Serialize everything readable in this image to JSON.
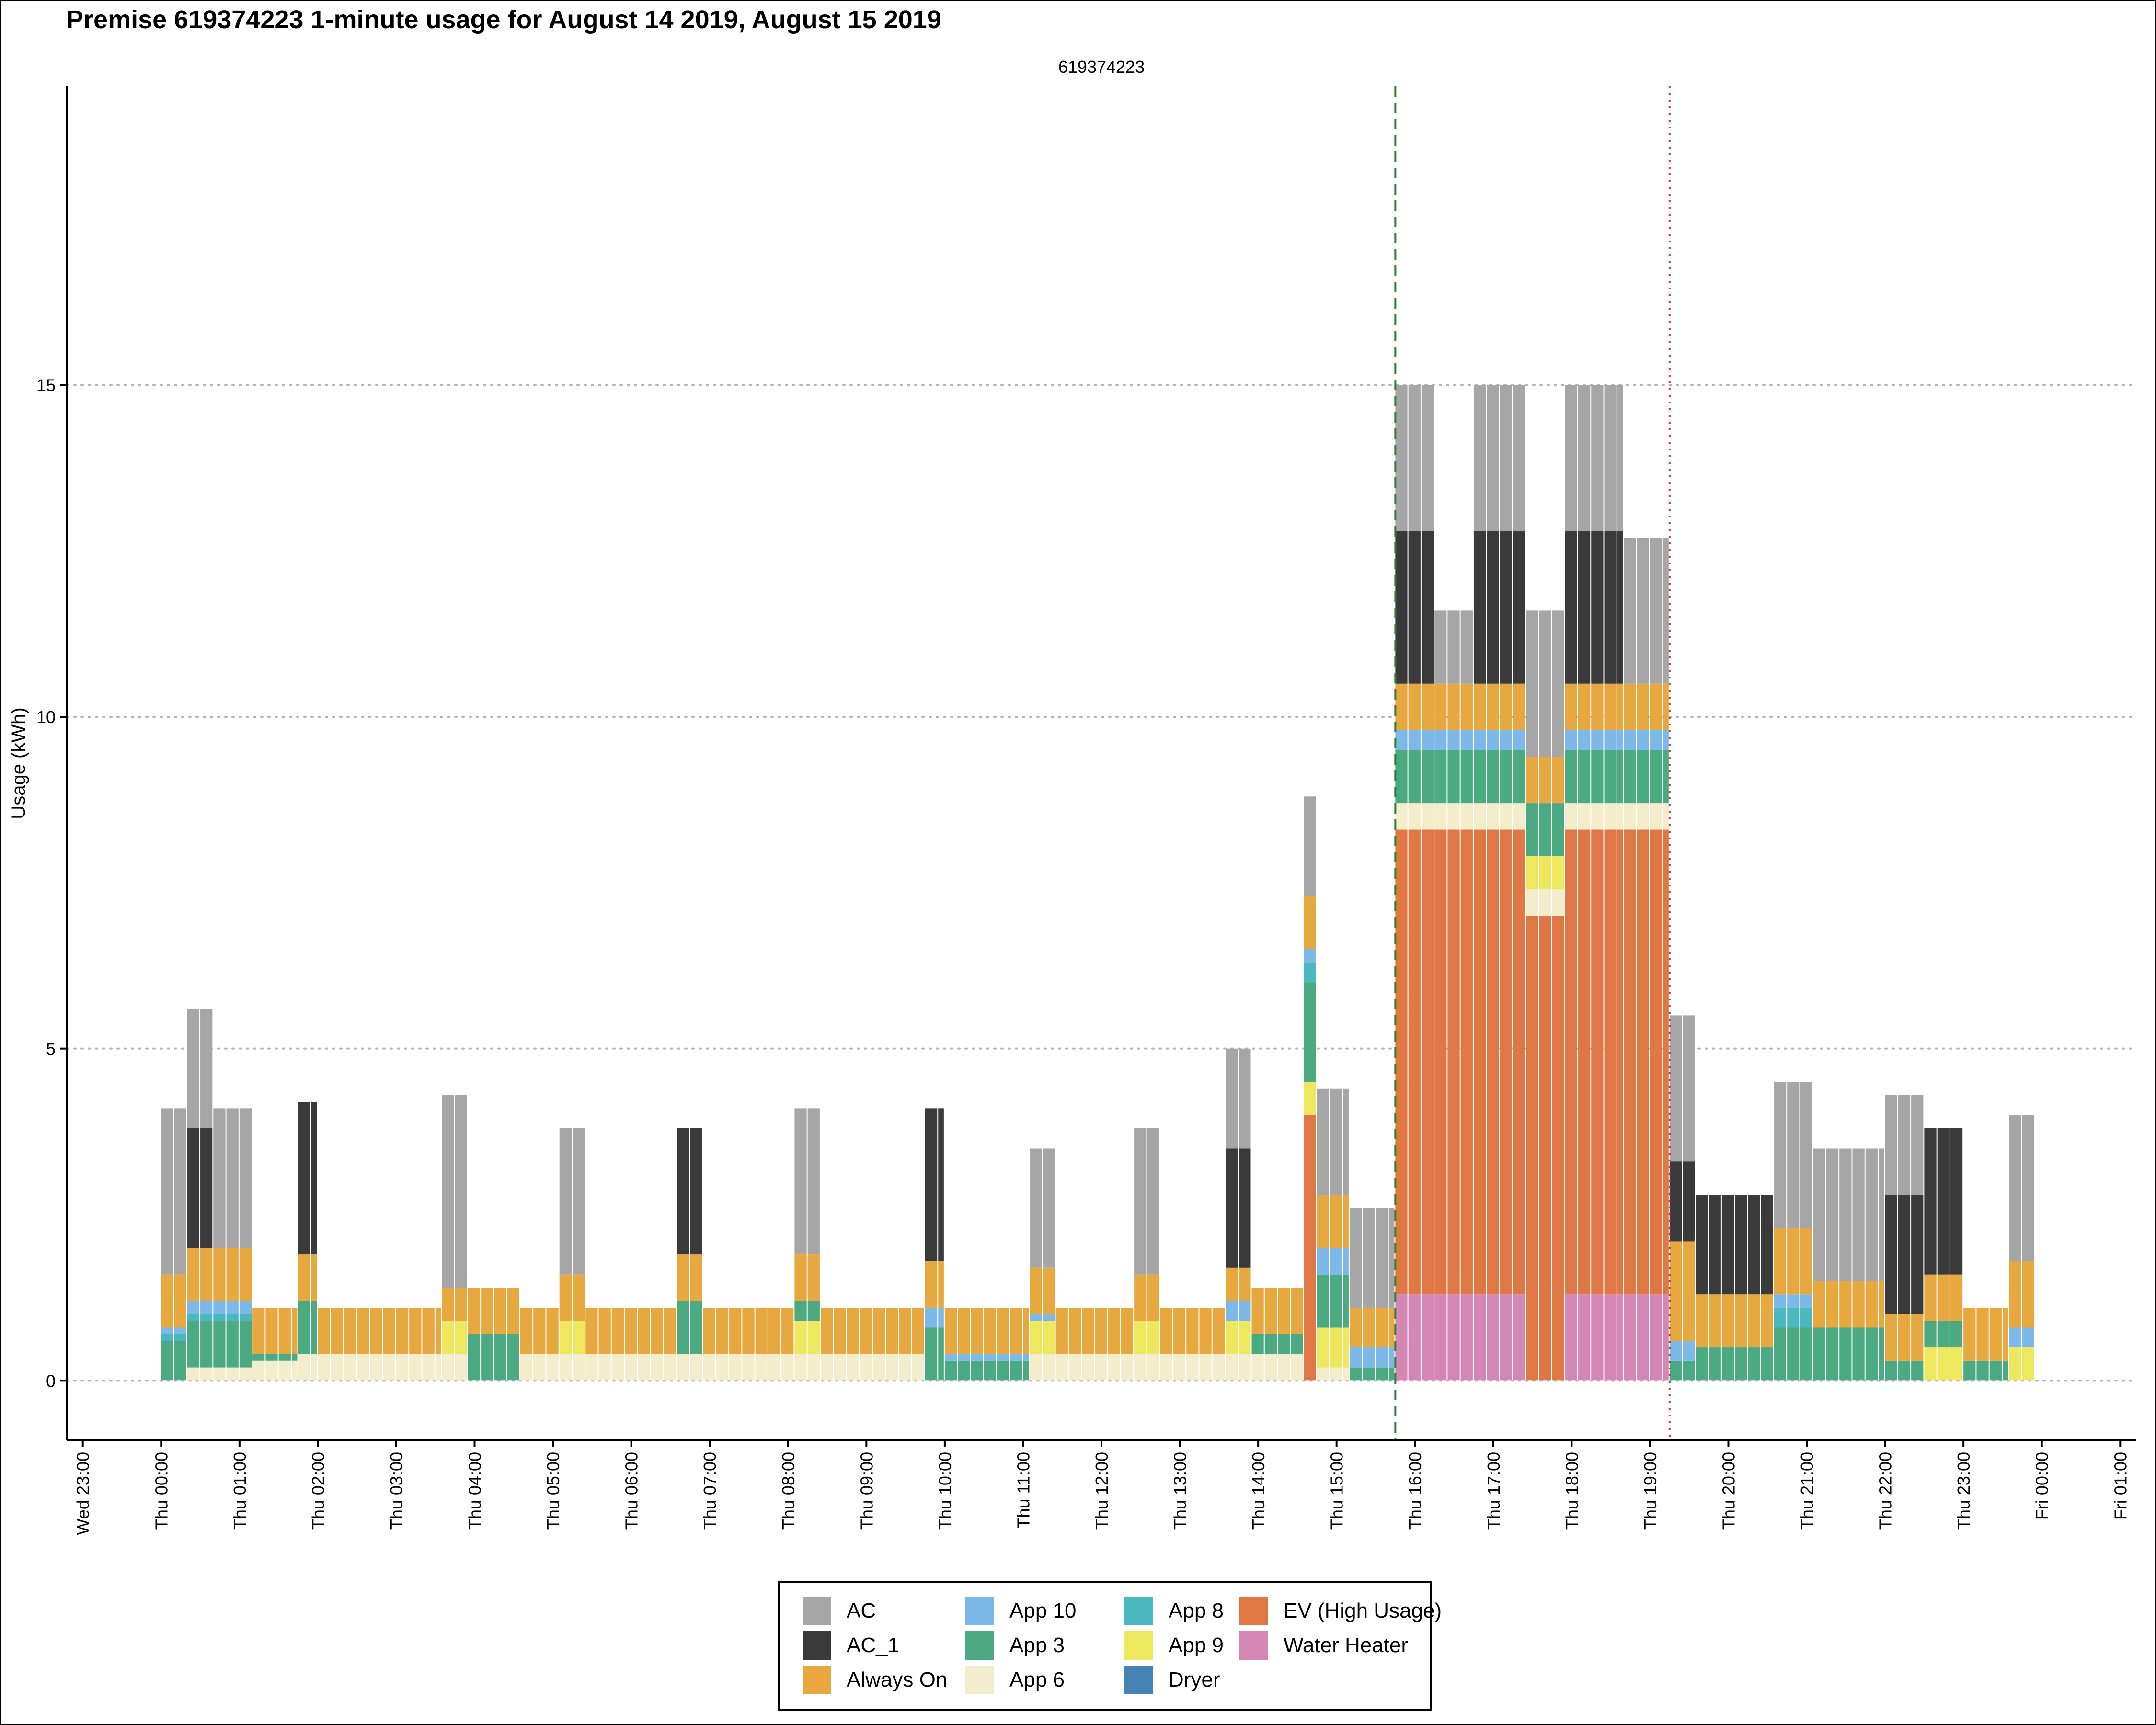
{
  "title": "Premise 619374223 1-minute usage for August 14 2019, August 15 2019",
  "chart_data": {
    "type": "bar",
    "stacked": true,
    "title": "Premise 619374223 1-minute usage for August 14 2019, August 15 2019",
    "subtitle": "619374223",
    "ylabel": "Usage (kWh)",
    "xlabel": "",
    "ylim": [
      -0.9,
      19.5
    ],
    "xlim_hours": [
      -1.2,
      25.2
    ],
    "yticks": [
      0,
      5,
      10,
      15
    ],
    "xticks": [
      "Wed 23:00",
      "Thu 00:00",
      "Thu 01:00",
      "Thu 02:00",
      "Thu 03:00",
      "Thu 04:00",
      "Thu 05:00",
      "Thu 06:00",
      "Thu 07:00",
      "Thu 08:00",
      "Thu 09:00",
      "Thu 10:00",
      "Thu 11:00",
      "Thu 12:00",
      "Thu 13:00",
      "Thu 14:00",
      "Thu 15:00",
      "Thu 16:00",
      "Thu 17:00",
      "Thu 18:00",
      "Thu 19:00",
      "Thu 20:00",
      "Thu 21:00",
      "Thu 22:00",
      "Thu 23:00",
      "Fri 00:00",
      "Fri 01:00"
    ],
    "grid": "horizontal dotted at y ticks",
    "legend_position": "bottom",
    "vlines": [
      {
        "time": "Thu 15:45",
        "style": "dashed",
        "color": "#2e7d32"
      },
      {
        "time": "Thu 19:15",
        "style": "dotted",
        "color": "#c0392b"
      }
    ],
    "series": [
      {
        "name": "AC",
        "color": "#a6a6a6"
      },
      {
        "name": "AC_1",
        "color": "#3a3a3a"
      },
      {
        "name": "Always On",
        "color": "#e8a840"
      },
      {
        "name": "App 10",
        "color": "#7cb9e8"
      },
      {
        "name": "App 3",
        "color": "#4caa82"
      },
      {
        "name": "App 6",
        "color": "#f3edcb"
      },
      {
        "name": "App 8",
        "color": "#4bb8c0"
      },
      {
        "name": "App 9",
        "color": "#eee85e"
      },
      {
        "name": "Dryer",
        "color": "#4682b4"
      },
      {
        "name": "EV (High Usage)",
        "color": "#df7845"
      },
      {
        "name": "Water Heater",
        "color": "#d487b5"
      }
    ],
    "segments": [
      {
        "start": "Thu 00:00",
        "end": "Thu 00:20",
        "AC": 2.5,
        "AC_1": 0.0,
        "Always On": 0.8,
        "App 10": 0.1,
        "App 3": 0.6,
        "App 6": 0.0,
        "App 8": 0.1,
        "App 9": 0.0,
        "Dryer": 0.0,
        "EV (High Usage)": 0.0,
        "Water Heater": 0.0
      },
      {
        "start": "Thu 00:20",
        "end": "Thu 00:40",
        "AC": 1.8,
        "AC_1": 1.8,
        "Always On": 0.8,
        "App 10": 0.2,
        "App 3": 0.7,
        "App 6": 0.2,
        "App 8": 0.1,
        "App 9": 0.0,
        "Dryer": 0.0,
        "EV (High Usage)": 0.0,
        "Water Heater": 0.0
      },
      {
        "start": "Thu 00:40",
        "end": "Thu 01:10",
        "AC": 2.1,
        "AC_1": 0.0,
        "Always On": 0.8,
        "App 10": 0.2,
        "App 3": 0.7,
        "App 6": 0.2,
        "App 8": 0.1,
        "App 9": 0.0,
        "Dryer": 0.0,
        "EV (High Usage)": 0.0,
        "Water Heater": 0.0
      },
      {
        "start": "Thu 01:10",
        "end": "Thu 01:45",
        "AC": 0.0,
        "AC_1": 0.0,
        "Always On": 0.7,
        "App 10": 0.0,
        "App 3": 0.1,
        "App 6": 0.3,
        "App 8": 0.0,
        "App 9": 0.0,
        "Dryer": 0.0,
        "EV (High Usage)": 0.0,
        "Water Heater": 0.0
      },
      {
        "start": "Thu 01:45",
        "end": "Thu 02:00",
        "AC": 0.0,
        "AC_1": 2.3,
        "Always On": 0.7,
        "App 10": 0.0,
        "App 3": 0.8,
        "App 6": 0.4,
        "App 8": 0.0,
        "App 9": 0.0,
        "Dryer": 0.0,
        "EV (High Usage)": 0.0,
        "Water Heater": 0.0
      },
      {
        "start": "Thu 02:00",
        "end": "Thu 03:35",
        "AC": 0.0,
        "AC_1": 0.0,
        "Always On": 0.7,
        "App 10": 0.0,
        "App 3": 0.0,
        "App 6": 0.4,
        "App 8": 0.0,
        "App 9": 0.0,
        "Dryer": 0.0,
        "EV (High Usage)": 0.0,
        "Water Heater": 0.0
      },
      {
        "start": "Thu 03:35",
        "end": "Thu 03:55",
        "AC": 2.9,
        "AC_1": 0.0,
        "Always On": 0.5,
        "App 10": 0.0,
        "App 3": 0.0,
        "App 6": 0.4,
        "App 8": 0.0,
        "App 9": 0.5,
        "Dryer": 0.0,
        "EV (High Usage)": 0.0,
        "Water Heater": 0.0
      },
      {
        "start": "Thu 03:55",
        "end": "Thu 04:35",
        "AC": 0.0,
        "AC_1": 0.0,
        "Always On": 0.7,
        "App 10": 0.0,
        "App 3": 0.7,
        "App 6": 0.0,
        "App 8": 0.0,
        "App 9": 0.0,
        "Dryer": 0.0,
        "EV (High Usage)": 0.0,
        "Water Heater": 0.0
      },
      {
        "start": "Thu 04:35",
        "end": "Thu 05:05",
        "AC": 0.0,
        "AC_1": 0.0,
        "Always On": 0.7,
        "App 10": 0.0,
        "App 3": 0.0,
        "App 6": 0.4,
        "App 8": 0.0,
        "App 9": 0.0,
        "Dryer": 0.0,
        "EV (High Usage)": 0.0,
        "Water Heater": 0.0
      },
      {
        "start": "Thu 05:05",
        "end": "Thu 05:25",
        "AC": 2.2,
        "AC_1": 0.0,
        "Always On": 0.7,
        "App 10": 0.0,
        "App 3": 0.0,
        "App 6": 0.4,
        "App 8": 0.0,
        "App 9": 0.5,
        "Dryer": 0.0,
        "EV (High Usage)": 0.0,
        "Water Heater": 0.0
      },
      {
        "start": "Thu 05:25",
        "end": "Thu 06:35",
        "AC": 0.0,
        "AC_1": 0.0,
        "Always On": 0.7,
        "App 10": 0.0,
        "App 3": 0.0,
        "App 6": 0.4,
        "App 8": 0.0,
        "App 9": 0.0,
        "Dryer": 0.0,
        "EV (High Usage)": 0.0,
        "Water Heater": 0.0
      },
      {
        "start": "Thu 06:35",
        "end": "Thu 06:55",
        "AC": 0.0,
        "AC_1": 1.9,
        "Always On": 0.7,
        "App 10": 0.0,
        "App 3": 0.8,
        "App 6": 0.4,
        "App 8": 0.0,
        "App 9": 0.0,
        "Dryer": 0.0,
        "EV (High Usage)": 0.0,
        "Water Heater": 0.0
      },
      {
        "start": "Thu 06:55",
        "end": "Thu 08:05",
        "AC": 0.0,
        "AC_1": 0.0,
        "Always On": 0.7,
        "App 10": 0.0,
        "App 3": 0.0,
        "App 6": 0.4,
        "App 8": 0.0,
        "App 9": 0.0,
        "Dryer": 0.0,
        "EV (High Usage)": 0.0,
        "Water Heater": 0.0
      },
      {
        "start": "Thu 08:05",
        "end": "Thu 08:25",
        "AC": 2.2,
        "AC_1": 0.0,
        "Always On": 0.7,
        "App 10": 0.0,
        "App 3": 0.3,
        "App 6": 0.4,
        "App 8": 0.0,
        "App 9": 0.5,
        "Dryer": 0.0,
        "EV (High Usage)": 0.0,
        "Water Heater": 0.0
      },
      {
        "start": "Thu 08:25",
        "end": "Thu 09:45",
        "AC": 0.0,
        "AC_1": 0.0,
        "Always On": 0.7,
        "App 10": 0.0,
        "App 3": 0.0,
        "App 6": 0.4,
        "App 8": 0.0,
        "App 9": 0.0,
        "Dryer": 0.0,
        "EV (High Usage)": 0.0,
        "Water Heater": 0.0
      },
      {
        "start": "Thu 09:45",
        "end": "Thu 10:00",
        "AC": 0.0,
        "AC_1": 2.3,
        "Always On": 0.7,
        "App 10": 0.3,
        "App 3": 0.8,
        "App 6": 0.0,
        "App 8": 0.0,
        "App 9": 0.0,
        "Dryer": 0.0,
        "EV (High Usage)": 0.0,
        "Water Heater": 0.0
      },
      {
        "start": "Thu 10:00",
        "end": "Thu 11:05",
        "AC": 0.0,
        "AC_1": 0.0,
        "Always On": 0.7,
        "App 10": 0.1,
        "App 3": 0.3,
        "App 6": 0.0,
        "App 8": 0.0,
        "App 9": 0.0,
        "Dryer": 0.0,
        "EV (High Usage)": 0.0,
        "Water Heater": 0.0
      },
      {
        "start": "Thu 11:05",
        "end": "Thu 11:25",
        "AC": 1.8,
        "AC_1": 0.0,
        "Always On": 0.7,
        "App 10": 0.1,
        "App 3": 0.0,
        "App 6": 0.4,
        "App 8": 0.0,
        "App 9": 0.5,
        "Dryer": 0.0,
        "EV (High Usage)": 0.0,
        "Water Heater": 0.0
      },
      {
        "start": "Thu 11:25",
        "end": "Thu 12:25",
        "AC": 0.0,
        "AC_1": 0.0,
        "Always On": 0.7,
        "App 10": 0.0,
        "App 3": 0.0,
        "App 6": 0.4,
        "App 8": 0.0,
        "App 9": 0.0,
        "Dryer": 0.0,
        "EV (High Usage)": 0.0,
        "Water Heater": 0.0
      },
      {
        "start": "Thu 12:25",
        "end": "Thu 12:45",
        "AC": 2.2,
        "AC_1": 0.0,
        "Always On": 0.7,
        "App 10": 0.0,
        "App 3": 0.0,
        "App 6": 0.4,
        "App 8": 0.0,
        "App 9": 0.5,
        "Dryer": 0.0,
        "EV (High Usage)": 0.0,
        "Water Heater": 0.0
      },
      {
        "start": "Thu 12:45",
        "end": "Thu 13:35",
        "AC": 0.0,
        "AC_1": 0.0,
        "Always On": 0.7,
        "App 10": 0.0,
        "App 3": 0.0,
        "App 6": 0.4,
        "App 8": 0.0,
        "App 9": 0.0,
        "Dryer": 0.0,
        "EV (High Usage)": 0.0,
        "Water Heater": 0.0
      },
      {
        "start": "Thu 13:35",
        "end": "Thu 13:55",
        "AC": 1.5,
        "AC_1": 1.8,
        "Always On": 0.5,
        "App 10": 0.3,
        "App 3": 0.0,
        "App 6": 0.4,
        "App 8": 0.0,
        "App 9": 0.5,
        "Dryer": 0.0,
        "EV (High Usage)": 0.0,
        "Water Heater": 0.0
      },
      {
        "start": "Thu 13:55",
        "end": "Thu 14:35",
        "AC": 0.0,
        "AC_1": 0.0,
        "Always On": 0.7,
        "App 10": 0.0,
        "App 3": 0.3,
        "App 6": 0.4,
        "App 8": 0.0,
        "App 9": 0.0,
        "Dryer": 0.0,
        "EV (High Usage)": 0.0,
        "Water Heater": 0.0
      },
      {
        "start": "Thu 14:35",
        "end": "Thu 14:45",
        "AC": 1.5,
        "AC_1": 0.0,
        "Always On": 0.8,
        "App 10": 0.2,
        "App 3": 1.5,
        "App 6": 0.0,
        "App 8": 0.3,
        "App 9": 0.5,
        "Dryer": 0.0,
        "EV (High Usage)": 4.0,
        "Water Heater": 0.0
      },
      {
        "start": "Thu 14:45",
        "end": "Thu 15:10",
        "AC": 1.6,
        "AC_1": 0.0,
        "Always On": 0.8,
        "App 10": 0.4,
        "App 3": 0.8,
        "App 6": 0.2,
        "App 8": 0.0,
        "App 9": 0.6,
        "Dryer": 0.0,
        "EV (High Usage)": 0.0,
        "Water Heater": 0.0
      },
      {
        "start": "Thu 15:10",
        "end": "Thu 15:45",
        "AC": 1.5,
        "AC_1": 0.0,
        "Always On": 0.6,
        "App 10": 0.3,
        "App 3": 0.2,
        "App 6": 0.0,
        "App 8": 0.0,
        "App 9": 0.0,
        "Dryer": 0.0,
        "EV (High Usage)": 0.0,
        "Water Heater": 0.0
      },
      {
        "start": "Thu 15:45",
        "end": "Thu 16:15",
        "AC": 2.2,
        "AC_1": 2.3,
        "Always On": 0.7,
        "App 10": 0.3,
        "App 3": 0.8,
        "App 6": 0.4,
        "App 8": 0.0,
        "App 9": 0.0,
        "Dryer": 0.0,
        "EV (High Usage)": 7.0,
        "Water Heater": 1.3
      },
      {
        "start": "Thu 16:15",
        "end": "Thu 16:45",
        "AC": 1.1,
        "AC_1": 0.0,
        "Always On": 0.7,
        "App 10": 0.3,
        "App 3": 0.8,
        "App 6": 0.4,
        "App 8": 0.0,
        "App 9": 0.0,
        "Dryer": 0.0,
        "EV (High Usage)": 7.0,
        "Water Heater": 1.3
      },
      {
        "start": "Thu 16:45",
        "end": "Thu 17:25",
        "AC": 2.2,
        "AC_1": 2.3,
        "Always On": 0.7,
        "App 10": 0.3,
        "App 3": 0.8,
        "App 6": 0.4,
        "App 8": 0.0,
        "App 9": 0.0,
        "Dryer": 0.0,
        "EV (High Usage)": 7.0,
        "Water Heater": 1.3
      },
      {
        "start": "Thu 17:25",
        "end": "Thu 17:55",
        "AC": 2.2,
        "AC_1": 0.0,
        "Always On": 0.7,
        "App 10": 0.0,
        "App 3": 0.8,
        "App 6": 0.4,
        "App 8": 0.0,
        "App 9": 0.5,
        "Dryer": 0.0,
        "EV (High Usage)": 7.0,
        "Water Heater": 0.0
      },
      {
        "start": "Thu 17:55",
        "end": "Thu 18:40",
        "AC": 2.2,
        "AC_1": 2.3,
        "Always On": 0.7,
        "App 10": 0.3,
        "App 3": 0.8,
        "App 6": 0.4,
        "App 8": 0.0,
        "App 9": 0.0,
        "Dryer": 0.0,
        "EV (High Usage)": 7.0,
        "Water Heater": 1.3
      },
      {
        "start": "Thu 18:40",
        "end": "Thu 19:15",
        "AC": 2.2,
        "AC_1": 0.0,
        "Always On": 0.7,
        "App 10": 0.3,
        "App 3": 0.8,
        "App 6": 0.4,
        "App 8": 0.0,
        "App 9": 0.0,
        "Dryer": 0.0,
        "EV (High Usage)": 7.0,
        "Water Heater": 1.3
      },
      {
        "start": "Thu 19:15",
        "end": "Thu 19:35",
        "AC": 2.2,
        "AC_1": 1.2,
        "Always On": 1.5,
        "App 10": 0.3,
        "App 3": 0.3,
        "App 6": 0.0,
        "App 8": 0.0,
        "App 9": 0.0,
        "Dryer": 0.0,
        "EV (High Usage)": 0.0,
        "Water Heater": 0.0
      },
      {
        "start": "Thu 19:35",
        "end": "Thu 20:35",
        "AC": 0.0,
        "AC_1": 1.5,
        "Always On": 0.8,
        "App 10": 0.0,
        "App 3": 0.5,
        "App 6": 0.0,
        "App 8": 0.0,
        "App 9": 0.0,
        "Dryer": 0.0,
        "EV (High Usage)": 0.0,
        "Water Heater": 0.0
      },
      {
        "start": "Thu 20:35",
        "end": "Thu 21:05",
        "AC": 2.2,
        "AC_1": 0.0,
        "Always On": 1.0,
        "App 10": 0.2,
        "App 3": 0.8,
        "App 6": 0.0,
        "App 8": 0.3,
        "App 9": 0.0,
        "Dryer": 0.0,
        "EV (High Usage)": 0.0,
        "Water Heater": 0.0
      },
      {
        "start": "Thu 21:05",
        "end": "Thu 22:00",
        "AC": 2.0,
        "AC_1": 0.0,
        "Always On": 0.7,
        "App 10": 0.0,
        "App 3": 0.8,
        "App 6": 0.0,
        "App 8": 0.0,
        "App 9": 0.0,
        "Dryer": 0.0,
        "EV (High Usage)": 0.0,
        "Water Heater": 0.0
      },
      {
        "start": "Thu 22:00",
        "end": "Thu 22:30",
        "AC": 1.5,
        "AC_1": 1.8,
        "Always On": 0.7,
        "App 10": 0.0,
        "App 3": 0.3,
        "App 6": 0.0,
        "App 8": 0.0,
        "App 9": 0.0,
        "Dryer": 0.0,
        "EV (High Usage)": 0.0,
        "Water Heater": 0.0
      },
      {
        "start": "Thu 22:30",
        "end": "Thu 23:00",
        "AC": 0.0,
        "AC_1": 2.2,
        "Always On": 0.7,
        "App 10": 0.0,
        "App 3": 0.4,
        "App 6": 0.0,
        "App 8": 0.0,
        "App 9": 0.5,
        "Dryer": 0.0,
        "EV (High Usage)": 0.0,
        "Water Heater": 0.0
      },
      {
        "start": "Thu 23:00",
        "end": "Thu 23:35",
        "AC": 0.0,
        "AC_1": 0.0,
        "Always On": 0.8,
        "App 10": 0.0,
        "App 3": 0.3,
        "App 6": 0.0,
        "App 8": 0.0,
        "App 9": 0.0,
        "Dryer": 0.0,
        "EV (High Usage)": 0.0,
        "Water Heater": 0.0
      },
      {
        "start": "Thu 23:35",
        "end": "Thu 23:55",
        "AC": 2.2,
        "AC_1": 0.0,
        "Always On": 1.0,
        "App 10": 0.3,
        "App 3": 0.0,
        "App 6": 0.0,
        "App 8": 0.0,
        "App 9": 0.5,
        "Dryer": 0.0,
        "EV (High Usage)": 0.0,
        "Water Heater": 0.0
      }
    ]
  }
}
